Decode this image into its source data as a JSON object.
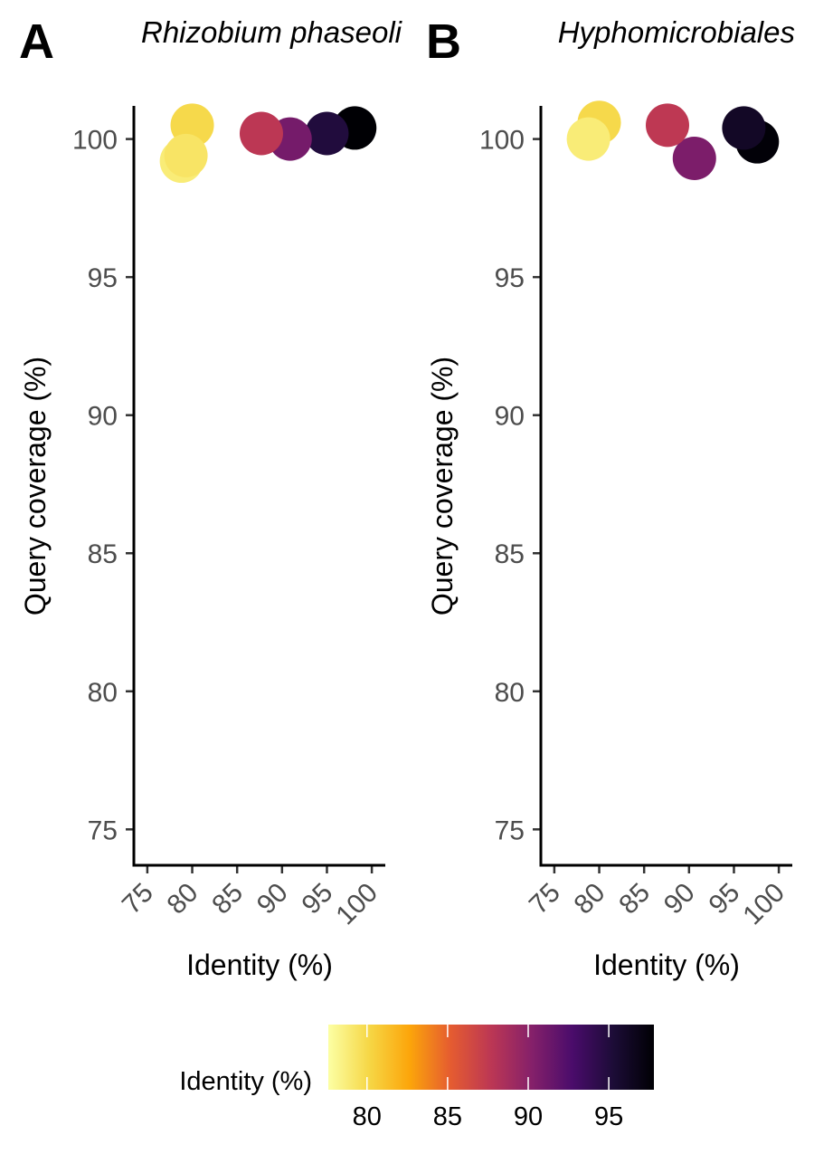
{
  "chart_data": [
    {
      "type": "scatter",
      "panel_label": "A",
      "title": "Rhizobium phaseoli",
      "xlabel": "Identity (%)",
      "ylabel": "Query coverage (%)",
      "xlim": [
        73.5,
        101.5
      ],
      "ylim": [
        73.7,
        101.2
      ],
      "xticks": [
        "75",
        "80",
        "85",
        "90",
        "95",
        "100"
      ],
      "yticks": [
        "75",
        "80",
        "85",
        "90",
        "95",
        "100"
      ],
      "points": [
        {
          "x": 98.1,
          "y": 100.4
        },
        {
          "x": 95.0,
          "y": 100.2
        },
        {
          "x": 90.9,
          "y": 100.0
        },
        {
          "x": 87.7,
          "y": 100.2
        },
        {
          "x": 80.0,
          "y": 100.5
        },
        {
          "x": 78.8,
          "y": 99.2
        },
        {
          "x": 79.3,
          "y": 99.4
        }
      ]
    },
    {
      "type": "scatter",
      "panel_label": "B",
      "title": "Hyphomicrobiales",
      "xlabel": "Identity (%)",
      "ylabel": "Query coverage (%)",
      "xlim": [
        73.5,
        101.5
      ],
      "ylim": [
        73.7,
        101.2
      ],
      "xticks": [
        "75",
        "80",
        "85",
        "90",
        "95",
        "100"
      ],
      "yticks": [
        "75",
        "80",
        "85",
        "90",
        "95",
        "100"
      ],
      "points": [
        {
          "x": 97.6,
          "y": 99.9
        },
        {
          "x": 96.1,
          "y": 100.4
        },
        {
          "x": 90.6,
          "y": 99.3
        },
        {
          "x": 87.6,
          "y": 100.5
        },
        {
          "x": 80.0,
          "y": 100.6
        },
        {
          "x": 78.8,
          "y": 100.0
        }
      ]
    }
  ],
  "legend": {
    "title": "Identity (%)",
    "labels": [
      "80",
      "85",
      "90",
      "95"
    ],
    "range": [
      77.6,
      97.8
    ],
    "colors": [
      "#FCFFA4",
      "#F6D746",
      "#FCA50A",
      "#E55C30",
      "#BC3754",
      "#85206A",
      "#4A0C6B",
      "#1C0C37",
      "#000004"
    ]
  }
}
